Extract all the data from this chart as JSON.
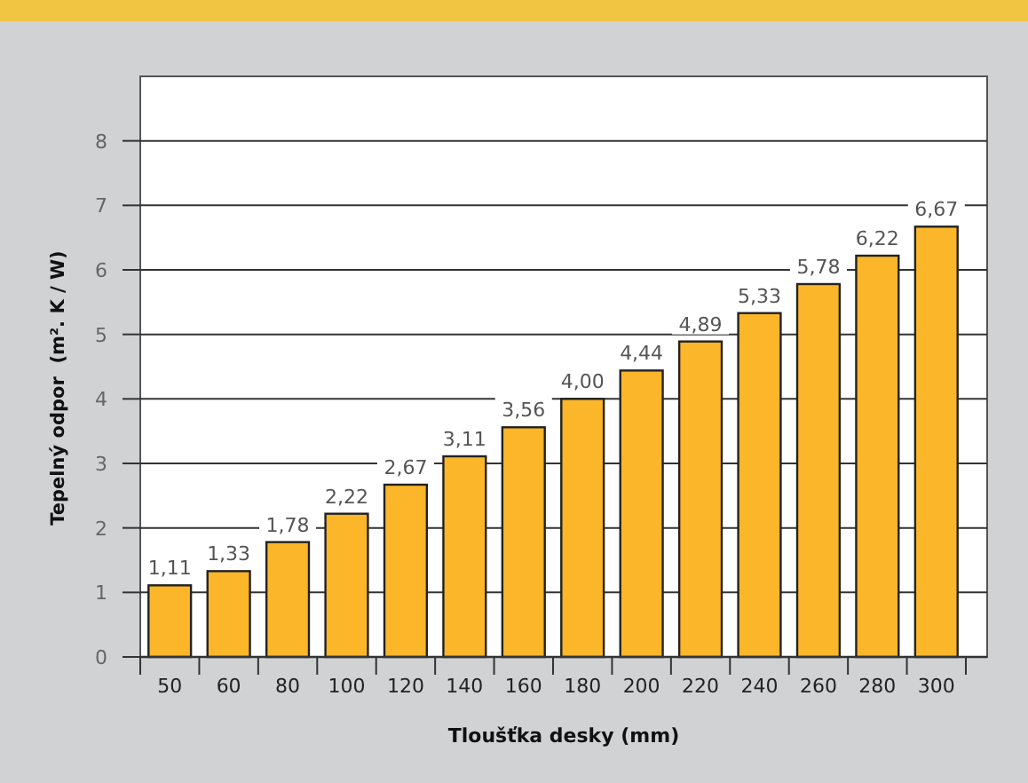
{
  "chart_data": {
    "type": "bar",
    "xlabel": "Tloušťka desky (mm)",
    "ylabel": "Tepelný odpor  (m². K / W)",
    "categories": [
      "50",
      "60",
      "80",
      "100",
      "120",
      "140",
      "160",
      "180",
      "200",
      "220",
      "240",
      "260",
      "280",
      "300"
    ],
    "values": [
      1.11,
      1.33,
      1.78,
      2.22,
      2.67,
      3.11,
      3.56,
      4.0,
      4.44,
      4.89,
      5.33,
      5.78,
      6.22,
      6.67
    ],
    "value_labels": [
      "1,11",
      "1,33",
      "1,78",
      "2,22",
      "2,67",
      "3,11",
      "3,56",
      "4,00",
      "4,44",
      "4,89",
      "5,33",
      "5,78",
      "6,22",
      "6,67"
    ],
    "color": "#fbb62a",
    "ylim": [
      0,
      9
    ],
    "yticks": [
      0,
      1,
      2,
      3,
      4,
      5,
      6,
      7,
      8
    ],
    "grid": "y"
  }
}
